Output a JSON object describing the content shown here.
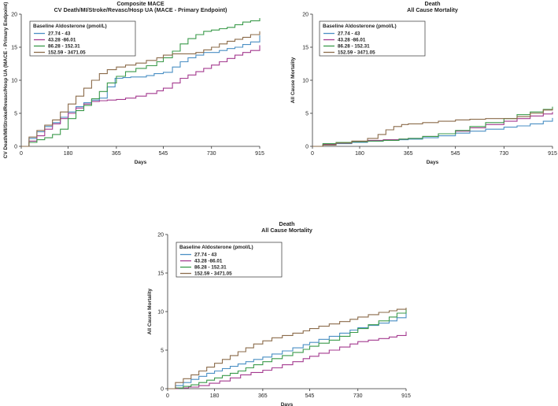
{
  "chart_data": [
    {
      "type": "line",
      "title": "Composite MACE",
      "subtitle": "CV Death/MI/Stroke/Revasc/Hosp UA (MACE - Primary Endpoint)",
      "xlabel": "Days",
      "ylabel": "CV Death/MI/Stroke/Revasc/Hosp UA (MACE - Primary Endpoint)",
      "xlim": [
        0,
        915
      ],
      "ylim": [
        0,
        20
      ],
      "xticks": [
        "0",
        "180",
        "365",
        "545",
        "730",
        "915"
      ],
      "yticks": [
        "0",
        "5",
        "10",
        "15",
        "20"
      ],
      "legend_title": "Baseline Aldosterone (pmol/L)",
      "series": [
        {
          "name": "27.74 - 43",
          "color": "#4a8fc4",
          "x": [
            0,
            30,
            60,
            90,
            120,
            150,
            180,
            210,
            240,
            270,
            300,
            330,
            360,
            365,
            390,
            420,
            450,
            480,
            510,
            545,
            580,
            610,
            640,
            670,
            700,
            730,
            760,
            790,
            820,
            850,
            880,
            915
          ],
          "y": [
            0,
            1.2,
            2.2,
            3.0,
            3.6,
            4.4,
            5.2,
            6.0,
            6.6,
            7.0,
            7.3,
            9.0,
            10.3,
            10.3,
            10.4,
            10.5,
            10.5,
            10.7,
            11.0,
            11.2,
            12.0,
            12.8,
            13.4,
            13.8,
            14.2,
            14.2,
            14.5,
            14.8,
            15.0,
            15.4,
            15.8,
            16.8
          ]
        },
        {
          "name": "43.28 -86.01",
          "color": "#a43a8f",
          "x": [
            0,
            30,
            60,
            90,
            120,
            150,
            180,
            210,
            240,
            270,
            300,
            330,
            365,
            400,
            440,
            480,
            520,
            545,
            580,
            610,
            640,
            670,
            700,
            730,
            760,
            790,
            820,
            850,
            880,
            915
          ],
          "y": [
            0,
            0.8,
            1.6,
            2.6,
            3.4,
            4.2,
            5.0,
            5.8,
            6.4,
            6.8,
            6.9,
            7.0,
            7.1,
            7.3,
            7.6,
            8.0,
            8.4,
            8.8,
            9.6,
            10.3,
            10.8,
            11.3,
            11.8,
            12.3,
            12.8,
            13.3,
            13.8,
            14.2,
            14.5,
            15.3
          ]
        },
        {
          "name": "86.28 - 152.31",
          "color": "#3a9a4a",
          "x": [
            0,
            30,
            60,
            90,
            120,
            150,
            180,
            210,
            240,
            270,
            300,
            330,
            365,
            400,
            440,
            480,
            520,
            545,
            580,
            610,
            640,
            670,
            700,
            730,
            760,
            790,
            820,
            850,
            880,
            915
          ],
          "y": [
            0,
            0.6,
            1.0,
            1.3,
            1.8,
            2.6,
            4.2,
            5.4,
            6.2,
            7.2,
            8.3,
            9.6,
            10.6,
            11.3,
            11.8,
            12.2,
            12.8,
            13.4,
            14.4,
            15.5,
            16.3,
            16.9,
            17.4,
            17.6,
            17.8,
            18.0,
            18.4,
            18.8,
            19.0,
            19.4
          ]
        },
        {
          "name": "152.59 - 3471.05",
          "color": "#8b6b4a",
          "x": [
            0,
            30,
            60,
            90,
            120,
            150,
            180,
            210,
            240,
            270,
            300,
            330,
            365,
            400,
            440,
            480,
            520,
            545,
            580,
            610,
            640,
            670,
            700,
            730,
            760,
            790,
            820,
            850,
            880,
            915
          ],
          "y": [
            0,
            1.4,
            2.4,
            3.2,
            4.0,
            5.2,
            6.4,
            7.6,
            8.8,
            10.0,
            11.0,
            11.6,
            12.0,
            12.3,
            12.6,
            13.0,
            13.4,
            13.8,
            14.0,
            14.0,
            14.0,
            14.2,
            14.6,
            15.0,
            15.5,
            15.9,
            16.2,
            16.5,
            16.9,
            17.4
          ]
        }
      ]
    },
    {
      "type": "line",
      "title": "Death",
      "subtitle": "All Cause Mortality",
      "xlabel": "Days",
      "ylabel": "All Cause Mortality",
      "xlim": [
        0,
        915
      ],
      "ylim": [
        0,
        20
      ],
      "xticks": [
        "0",
        "180",
        "365",
        "545",
        "730",
        "915"
      ],
      "yticks": [
        "0",
        "5",
        "10",
        "15",
        "20"
      ],
      "legend_title": "Baseline Aldosterone (pmol/L)",
      "series": [
        {
          "name": "27.74 - 43",
          "color": "#4a8fc4",
          "x": [
            0,
            40,
            90,
            150,
            210,
            270,
            330,
            365,
            420,
            480,
            545,
            600,
            660,
            730,
            780,
            830,
            880,
            915
          ],
          "y": [
            0,
            0.2,
            0.4,
            0.6,
            0.8,
            0.9,
            1.0,
            1.1,
            1.3,
            1.6,
            2.0,
            2.3,
            2.6,
            2.9,
            3.1,
            3.4,
            3.8,
            4.3
          ]
        },
        {
          "name": "43.28 -86.01",
          "color": "#a43a8f",
          "x": [
            0,
            40,
            90,
            150,
            210,
            270,
            330,
            365,
            420,
            480,
            545,
            600,
            660,
            730,
            780,
            830,
            880,
            915
          ],
          "y": [
            0,
            0.3,
            0.5,
            0.7,
            0.9,
            1.0,
            1.1,
            1.2,
            1.5,
            1.9,
            2.3,
            2.8,
            3.3,
            3.8,
            4.2,
            4.6,
            4.9,
            5.2
          ]
        },
        {
          "name": "86.28 - 152.31",
          "color": "#3a9a4a",
          "x": [
            0,
            40,
            90,
            150,
            210,
            270,
            330,
            365,
            420,
            480,
            545,
            600,
            660,
            730,
            780,
            830,
            880,
            915
          ],
          "y": [
            0,
            0.4,
            0.6,
            0.7,
            0.8,
            0.9,
            1.1,
            1.2,
            1.5,
            1.9,
            2.4,
            3.0,
            3.6,
            4.2,
            4.8,
            5.2,
            5.6,
            6.0
          ]
        },
        {
          "name": "152.59 - 3471.05",
          "color": "#8b6b4a",
          "x": [
            0,
            40,
            90,
            150,
            210,
            250,
            280,
            310,
            340,
            365,
            420,
            480,
            545,
            600,
            660,
            730,
            780,
            830,
            880,
            915
          ],
          "y": [
            0,
            0.2,
            0.5,
            0.8,
            1.2,
            1.8,
            2.5,
            3.0,
            3.3,
            3.4,
            3.6,
            3.8,
            4.0,
            4.1,
            4.2,
            4.2,
            4.5,
            5.0,
            5.5,
            5.7
          ]
        }
      ]
    },
    {
      "type": "line",
      "title": "Death",
      "subtitle": "All Cause Mortality",
      "xlabel": "Days",
      "ylabel": "All Cause Mortality",
      "xlim": [
        0,
        915
      ],
      "ylim": [
        0,
        20
      ],
      "xticks": [
        "0",
        "180",
        "365",
        "545",
        "730",
        "915"
      ],
      "yticks": [
        "0",
        "5",
        "10",
        "15",
        "20"
      ],
      "legend_title": "Baseline Aldosterone (pmol/L)",
      "series": [
        {
          "name": "27.74 - 43",
          "color": "#4a8fc4",
          "x": [
            0,
            30,
            60,
            90,
            120,
            150,
            180,
            210,
            240,
            270,
            300,
            330,
            365,
            400,
            440,
            480,
            520,
            545,
            580,
            620,
            660,
            700,
            730,
            770,
            810,
            850,
            880,
            915
          ],
          "y": [
            0,
            0.4,
            0.8,
            1.2,
            1.6,
            2.0,
            2.3,
            2.6,
            2.9,
            3.2,
            3.5,
            3.8,
            4.1,
            4.5,
            4.9,
            5.3,
            5.7,
            6.0,
            6.4,
            6.8,
            7.2,
            7.6,
            7.9,
            8.2,
            8.5,
            8.8,
            9.2,
            9.8
          ]
        },
        {
          "name": "43.28 -86.01",
          "color": "#a43a8f",
          "x": [
            0,
            40,
            80,
            120,
            160,
            200,
            240,
            280,
            320,
            365,
            400,
            440,
            480,
            520,
            545,
            580,
            620,
            660,
            700,
            730,
            770,
            810,
            850,
            880,
            915
          ],
          "y": [
            0,
            0.1,
            0.2,
            0.4,
            0.7,
            1.0,
            1.4,
            1.8,
            2.1,
            2.4,
            2.7,
            3.1,
            3.5,
            3.9,
            4.2,
            4.6,
            5.0,
            5.4,
            5.8,
            6.1,
            6.3,
            6.5,
            6.7,
            6.9,
            7.4
          ]
        },
        {
          "name": "86.28 - 152.31",
          "color": "#3a9a4a",
          "x": [
            0,
            30,
            60,
            90,
            120,
            150,
            180,
            210,
            240,
            270,
            300,
            330,
            365,
            400,
            440,
            480,
            520,
            545,
            580,
            620,
            660,
            700,
            730,
            770,
            810,
            850,
            880,
            915
          ],
          "y": [
            0,
            0.1,
            0.3,
            0.5,
            0.8,
            1.1,
            1.4,
            1.7,
            2.0,
            2.3,
            2.7,
            3.1,
            3.5,
            3.9,
            4.3,
            4.7,
            5.1,
            5.5,
            5.9,
            6.3,
            6.8,
            7.3,
            7.8,
            8.3,
            8.8,
            9.3,
            9.8,
            10.3
          ]
        },
        {
          "name": "152.59 - 3471.05",
          "color": "#8b6b4a",
          "x": [
            0,
            30,
            60,
            90,
            120,
            150,
            180,
            210,
            240,
            270,
            300,
            330,
            365,
            400,
            440,
            480,
            520,
            545,
            580,
            620,
            660,
            700,
            730,
            770,
            810,
            850,
            880,
            915
          ],
          "y": [
            0,
            0.8,
            1.3,
            1.8,
            2.3,
            2.8,
            3.3,
            3.8,
            4.3,
            4.8,
            5.3,
            5.8,
            6.2,
            6.6,
            6.9,
            7.2,
            7.5,
            7.8,
            8.1,
            8.4,
            8.7,
            9.0,
            9.3,
            9.6,
            9.9,
            10.1,
            10.3,
            10.5
          ]
        }
      ]
    }
  ]
}
